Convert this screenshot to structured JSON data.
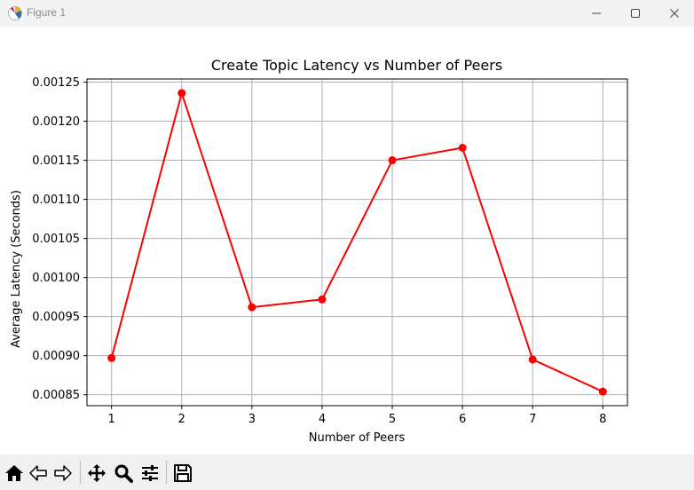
{
  "window": {
    "title": "Figure 1",
    "controls": [
      "minimize-icon",
      "maximize-icon",
      "close-icon"
    ]
  },
  "toolbar": {
    "buttons": [
      "home-icon",
      "back-icon",
      "forward-icon",
      "pan-icon",
      "zoom-icon",
      "configure-subplots-icon",
      "save-icon"
    ]
  },
  "colors": {
    "series": "#ff0000",
    "grid": "#b0b0b0",
    "axes": "#000000"
  },
  "chart_data": {
    "type": "line",
    "title": "Create Topic Latency vs Number of Peers",
    "xlabel": "Number of Peers",
    "ylabel": "Average Latency (Seconds)",
    "x": [
      1,
      2,
      3,
      4,
      5,
      6,
      7,
      8
    ],
    "series": [
      {
        "values": [
          0.000897,
          0.001236,
          0.000962,
          0.000972,
          0.00115,
          0.001166,
          0.000895,
          0.000854
        ],
        "color": "#ff0000",
        "marker": "circle"
      }
    ],
    "xticks": [
      "1",
      "2",
      "3",
      "4",
      "5",
      "6",
      "7",
      "8"
    ],
    "yticks": [
      "0.00085",
      "0.00090",
      "0.00095",
      "0.00100",
      "0.00105",
      "0.00110",
      "0.00115",
      "0.00120",
      "0.00125"
    ],
    "xlim": [
      0.65,
      8.35
    ],
    "ylim": [
      0.000836,
      0.001254
    ],
    "grid": true,
    "legend": "none"
  }
}
